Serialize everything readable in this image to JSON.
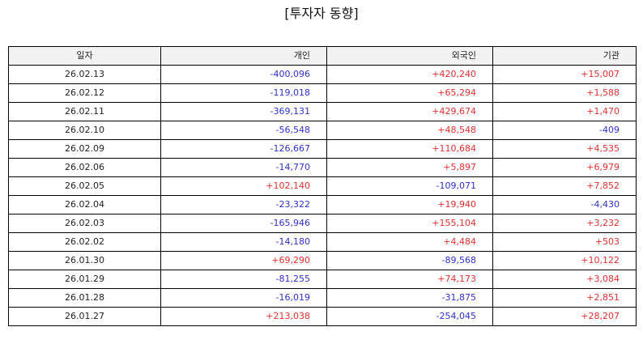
{
  "title": "[투자자 동향]",
  "colors": {
    "positive": "#e03030",
    "negative": "#3030c8",
    "header_bg": "#f2f2f2"
  },
  "table": {
    "headers": [
      "일자",
      "개인",
      "외국인",
      "기관"
    ],
    "rows": [
      [
        "26.02.13",
        "-400,096",
        "+420,240",
        "+15,007"
      ],
      [
        "26.02.12",
        "-119,018",
        "+65,294",
        "+1,588"
      ],
      [
        "26.02.11",
        "-369,131",
        "+429,674",
        "+1,470"
      ],
      [
        "26.02.10",
        "-56,548",
        "+48,548",
        "-409"
      ],
      [
        "26.02.09",
        "-126,667",
        "+110,684",
        "+4,535"
      ],
      [
        "26.02.06",
        "-14,770",
        "+5,897",
        "+6,979"
      ],
      [
        "26.02.05",
        "+102,140",
        "-109,071",
        "+7,852"
      ],
      [
        "26.02.04",
        "-23,322",
        "+19,940",
        "-4,430"
      ],
      [
        "26.02.03",
        "-165,946",
        "+155,104",
        "+3,232"
      ],
      [
        "26.02.02",
        "-14,180",
        "+4,484",
        "+503"
      ],
      [
        "26.01.30",
        "+69,290",
        "-89,568",
        "+10,122"
      ],
      [
        "26.01.29",
        "-81,255",
        "+74,173",
        "+3,084"
      ],
      [
        "26.01.28",
        "-16,019",
        "-31,875",
        "+2,851"
      ],
      [
        "26.01.27",
        "+213,038",
        "-254,045",
        "+28,207"
      ]
    ]
  }
}
